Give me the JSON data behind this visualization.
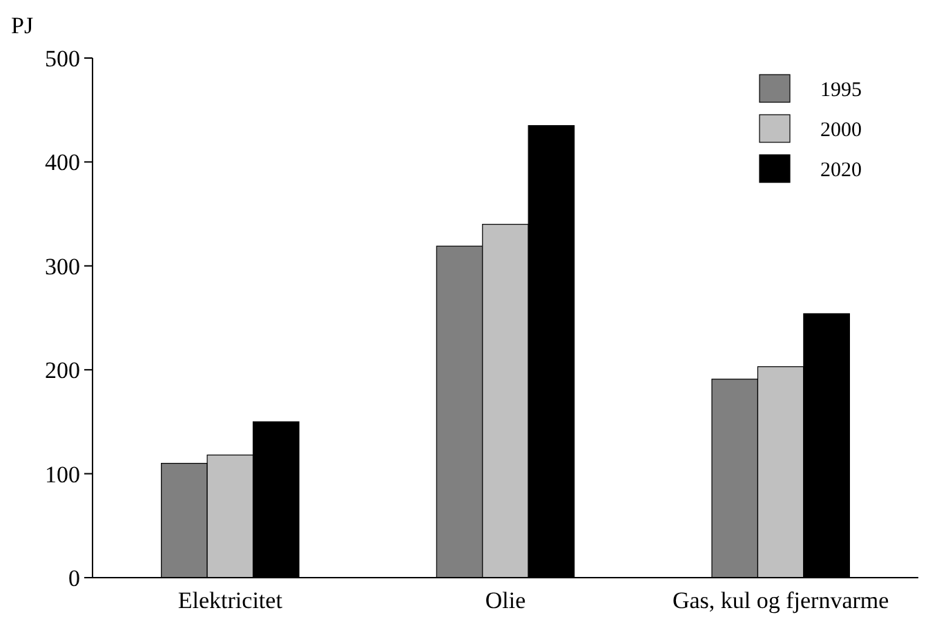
{
  "chart_data": {
    "type": "bar",
    "ylabel": "PJ",
    "categories": [
      "Elektricitet",
      "Olie",
      "Gas, kul og fjernvarme"
    ],
    "series": [
      {
        "name": "1995",
        "color": "#808080",
        "values": [
          110,
          319,
          191
        ]
      },
      {
        "name": "2000",
        "color": "#c0c0c0",
        "values": [
          118,
          340,
          203
        ]
      },
      {
        "name": "2020",
        "color": "#000000",
        "values": [
          150,
          435,
          254
        ]
      }
    ],
    "ylim": [
      0,
      500
    ],
    "yticks": [
      0,
      100,
      200,
      300,
      400,
      500
    ],
    "grid": false,
    "legend": "top right"
  }
}
